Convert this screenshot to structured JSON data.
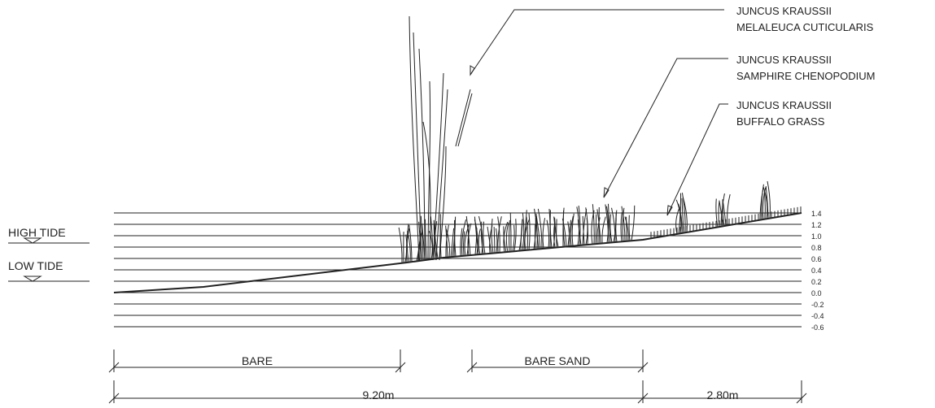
{
  "annotations": [
    {
      "lines": [
        "JUNCUS KRAUSSII",
        "MELALEUCA CUTICULARIS"
      ]
    },
    {
      "lines": [
        "JUNCUS KRAUSSII",
        "SAMPHIRE CHENOPODIUM"
      ]
    },
    {
      "lines": [
        "JUNCUS KRAUSSII",
        "BUFFALO GRASS"
      ]
    }
  ],
  "tides": [
    "HIGH TIDE",
    "LOW TIDE"
  ],
  "levels": [
    "1.4",
    "1.2",
    "1.0",
    "0.8",
    "0.6",
    "0.4",
    "0.2",
    "0.0",
    "-0.2",
    "-0.4",
    "-0.6"
  ],
  "zones": [
    "BARE",
    "BARE SAND"
  ],
  "dimensions": [
    "9.20m",
    "2.80m"
  ]
}
